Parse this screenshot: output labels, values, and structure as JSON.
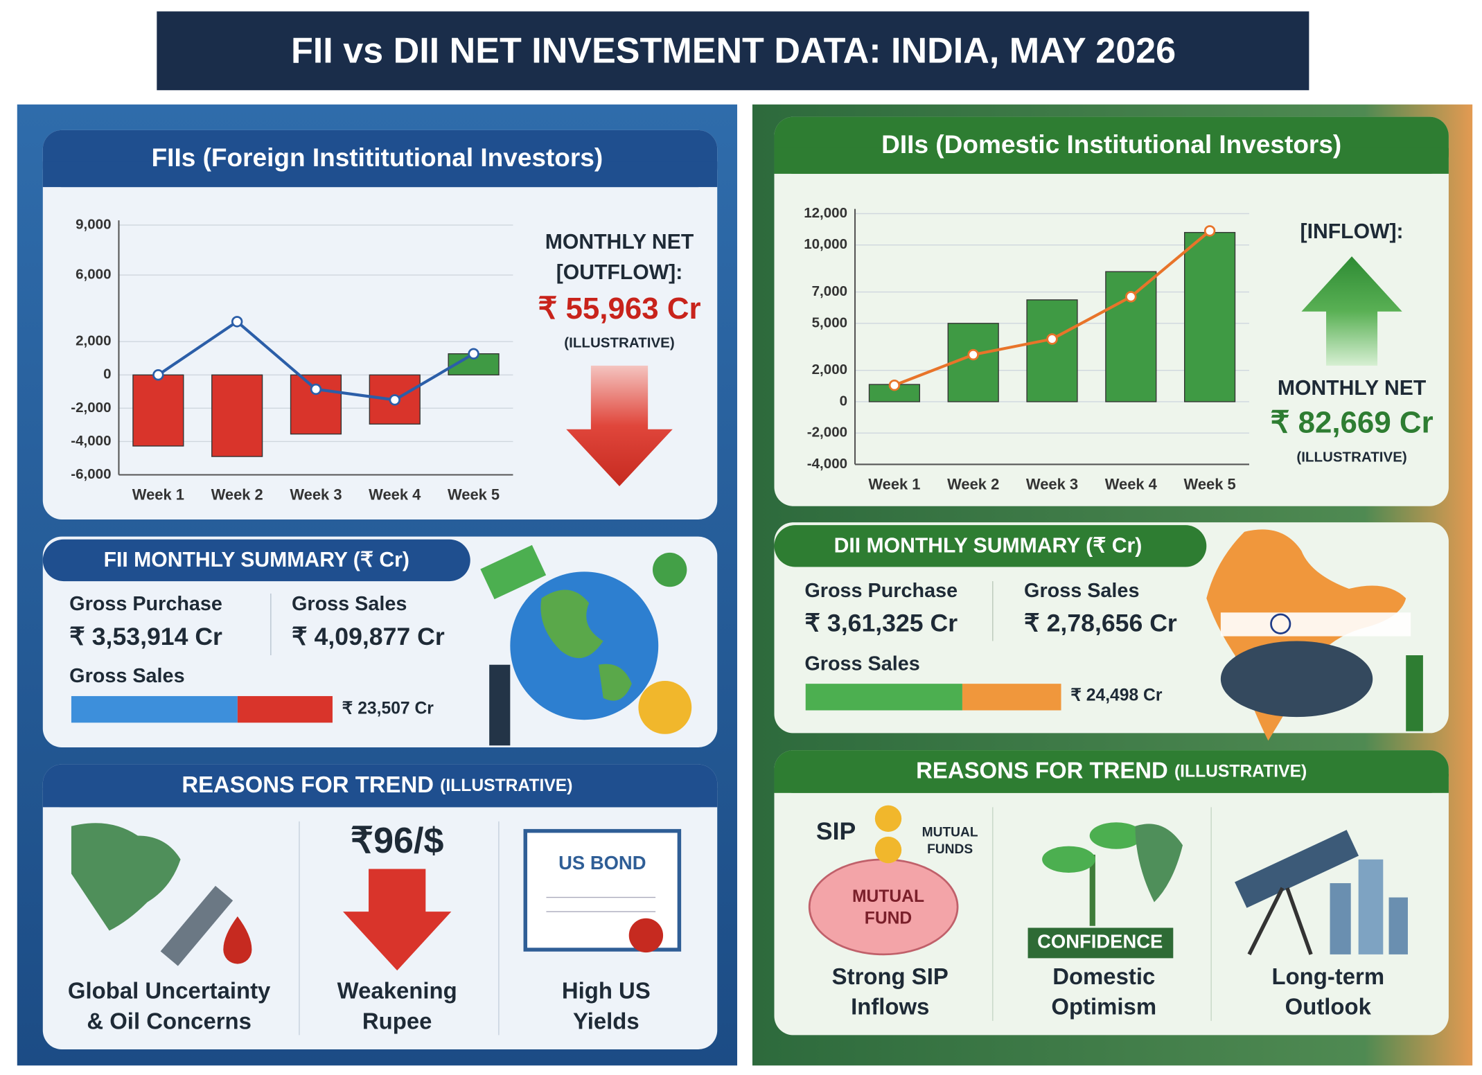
{
  "title": "FII vs DII NET INVESTMENT DATA: INDIA, MAY 2026",
  "chart_data": [
    {
      "type": "bar",
      "categories": [
        "Week 1",
        "Week 2",
        "Week 3",
        "Week 4",
        "Week 5"
      ],
      "ylim": [
        -6000,
        9000
      ],
      "yticks": [
        {
          "value": 9000,
          "label": "9,000"
        },
        {
          "value": 6000,
          "label": "6,000"
        },
        {
          "value": 2000,
          "label": "2,000"
        },
        0,
        {
          "value": -2000,
          "label": "-2,000"
        },
        {
          "value": -4000,
          "label": "-4,000"
        },
        {
          "value": -6000,
          "label": "-6,000"
        }
      ],
      "grid": true,
      "series": [
        {
          "type": "bar",
          "color": "#3f9a44",
          "negative_color": "#d9342b",
          "values": [
            -4270,
            -4900,
            -3550,
            -2950,
            1270
          ]
        },
        {
          "type": "line",
          "color": "#2b5ea8",
          "values": [
            0,
            3200,
            -860,
            -1500,
            1270
          ]
        }
      ]
    },
    {
      "type": "bar",
      "categories": [
        "Week 1",
        "Week 2",
        "Week 3",
        "Week 4",
        "Week 5"
      ],
      "ylim": [
        -4000,
        12000
      ],
      "yticks": [
        {
          "value": 12000,
          "label": "12,000"
        },
        {
          "value": 10000,
          "label": "10,000"
        },
        {
          "value": 7000,
          "label": "7,000"
        },
        {
          "value": 5000,
          "label": "5,000"
        },
        {
          "value": 2000,
          "label": "2,000"
        },
        0,
        {
          "value": -2000,
          "label": "-2,000"
        },
        {
          "value": -4000,
          "label": "-4,000"
        }
      ],
      "grid": true,
      "series": [
        {
          "type": "bar",
          "color": "#3f9a44",
          "negative_color": "#d9342b",
          "values": [
            1100,
            5000,
            6500,
            8300,
            10800
          ]
        },
        {
          "type": "line",
          "color": "#e8742a",
          "values": [
            1050,
            3000,
            4000,
            6700,
            10900
          ]
        }
      ]
    }
  ],
  "fii": {
    "heading": "FIIs (Foreign Instititutional Investors)",
    "net_label": "MONTHLY NET",
    "net_direction": "[OUTFLOW]:",
    "net_value": "₹ 55,963 Cr",
    "note": "(ILLUSTRATIVE)",
    "summary_title": "FII MONTHLY SUMMARY (₹ Cr)",
    "gross_purchase_label": "Gross Purchase",
    "gross_purchase": "₹ 3,53,914 Cr",
    "gross_sales_label": "Gross Sales",
    "gross_sales": "₹ 4,09,877 Cr",
    "bar_label": "Gross Sales",
    "bar_value": "₹ 23,507 Cr",
    "reasons_title": "REASONS FOR TREND",
    "reasons_note": "(ILLUSTRATIVE)",
    "rupee_icon_text": "₹96/$",
    "bond_icon_text": "US BOND",
    "reasons": [
      [
        "Global Uncertainty",
        "& Oil Concerns"
      ],
      [
        "Weakening",
        "Rupee"
      ],
      [
        "High US",
        "Yields"
      ]
    ]
  },
  "dii": {
    "heading": "DIIs (Domestic Institutional Investors)",
    "net_direction": "[INFLOW]:",
    "net_label": "MONTHLY NET",
    "net_value": "₹ 82,669 Cr",
    "note": "(ILLUSTRATIVE)",
    "summary_title": "DII MONTHLY SUMMARY (₹ Cr)",
    "gross_purchase_label": "Gross Purchase",
    "gross_purchase": "₹ 3,61,325 Cr",
    "gross_sales_label": "Gross Sales",
    "gross_sales": "₹ 2,78,656 Cr",
    "bar_label": "Gross Sales",
    "bar_value": "₹ 24,498 Cr",
    "reasons_title": "REASONS FOR TREND",
    "reasons_note": "(ILLUSTRATIVE)",
    "sip_icon_text": "SIP",
    "funds_icon_text": [
      "MUTUAL",
      "FUNDS"
    ],
    "piggy_icon_text": [
      "MUTUAL",
      "FUND"
    ],
    "confidence_icon_text": "CONFIDENCE",
    "reasons": [
      [
        "Strong SIP",
        "Inflows"
      ],
      [
        "Domestic",
        "Optimism"
      ],
      [
        "Long-term",
        "Outlook"
      ]
    ]
  }
}
